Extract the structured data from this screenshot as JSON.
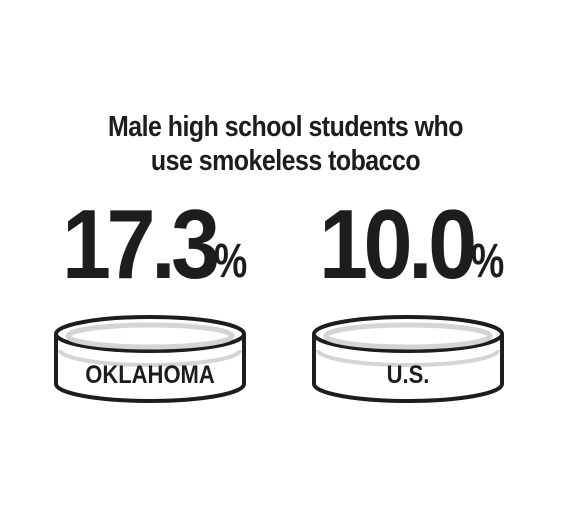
{
  "headline": {
    "line1": "Male high school students who",
    "line2": "use smokeless tobacco"
  },
  "stats": [
    {
      "region": "OKLAHOMA",
      "value": "17.3",
      "unit": "%",
      "percent": 17.3
    },
    {
      "region": "U.S.",
      "value": "10.0",
      "unit": "%",
      "percent": 10.0
    }
  ],
  "colors": {
    "text": "#1d1d1d",
    "tin_outline": "#1d1d1d",
    "tin_rim": "#d4d4d4",
    "background": "#ffffff"
  },
  "icons": [
    "tobacco-tin-icon",
    "tobacco-tin-icon"
  ]
}
